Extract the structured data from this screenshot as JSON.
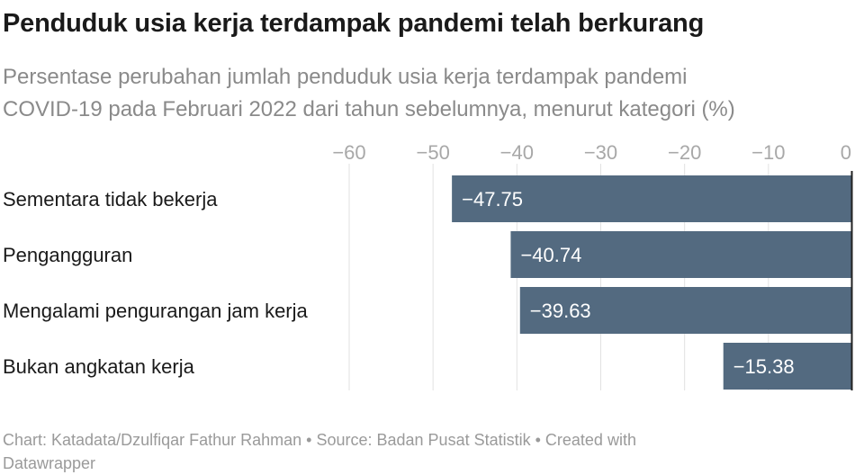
{
  "title": "Penduduk usia kerja terdampak pandemi telah berkurang",
  "subtitle_line1": "Persentase perubahan jumlah penduduk usia kerja terdampak pandemi",
  "subtitle_line2": "COVID-19 pada Februari 2022 dari tahun sebelumnya, menurut kategori (%)",
  "footer_line1": "Chart: Katadata/Dzulfiqar Fathur Rahman • Source: Badan Pusat Statistik • Created with",
  "footer_line2": "Datawrapper",
  "colors": {
    "bar": "#536a80",
    "bar_label": "#ffffff",
    "tick": "#a8a8a8",
    "grid": "#e2e2e2",
    "category": "#1a1a1a",
    "zero_line": "#222222"
  },
  "chart_data": {
    "type": "bar",
    "orientation": "horizontal",
    "categories": [
      "Sementara tidak bekerja",
      "Pengangguran",
      "Mengalami pengurangan jam kerja",
      "Bukan angkatan kerja"
    ],
    "values": [
      -47.75,
      -40.74,
      -39.63,
      -15.38
    ],
    "value_labels": [
      "−47.75",
      "−40.74",
      "−39.63",
      "−15.38"
    ],
    "xlim": [
      -60,
      0
    ],
    "xticks": [
      -60,
      -50,
      -40,
      -30,
      -20,
      -10,
      0
    ],
    "xtick_labels": [
      "−60",
      "−50",
      "−40",
      "−30",
      "−20",
      "−10",
      "0"
    ],
    "axis_position": "top",
    "grid": true
  }
}
